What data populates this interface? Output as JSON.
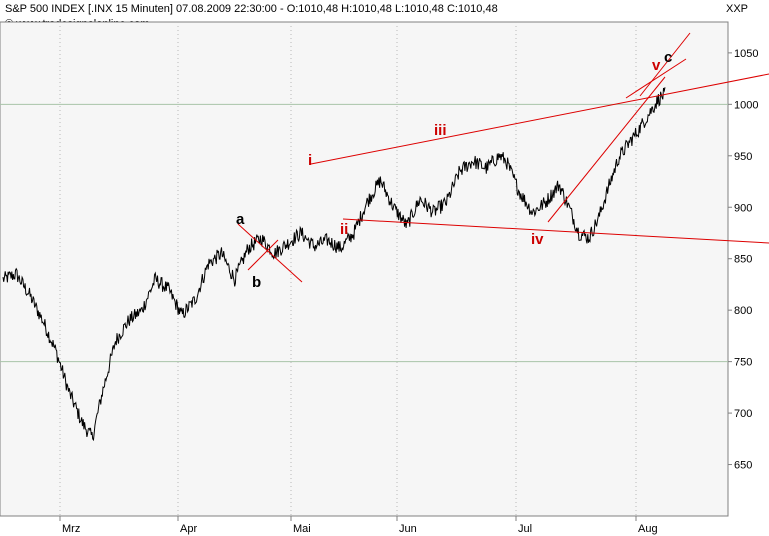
{
  "header": {
    "title": "S&P 500 INDEX [.INX  15 Minuten] 07.08.2009 22:30:00 - O:1010,48 H:1010,48 L:1010,48 C:1010,48",
    "copyright": "© www.tradesignalonline.com",
    "symbol": "XXP"
  },
  "chart_data": {
    "type": "line",
    "title": "S&P 500 INDEX [.INX 15 Minuten]",
    "ylim": [
      600,
      1080
    ],
    "y_ticks": [
      650,
      700,
      750,
      800,
      850,
      900,
      950,
      1000,
      1050
    ],
    "x_ticks": [
      "Mrz",
      "Apr",
      "Mai",
      "Jun",
      "Jul",
      "Aug"
    ],
    "grid": "horizontal at 750 and 1000; vertical at month starts",
    "series_anchor_points": [
      {
        "t": 0.0,
        "v": 830
      },
      {
        "t": 0.02,
        "v": 835
      },
      {
        "t": 0.04,
        "v": 815
      },
      {
        "t": 0.06,
        "v": 790
      },
      {
        "t": 0.08,
        "v": 760
      },
      {
        "t": 0.1,
        "v": 720
      },
      {
        "t": 0.12,
        "v": 690
      },
      {
        "t": 0.135,
        "v": 676
      },
      {
        "t": 0.15,
        "v": 720
      },
      {
        "t": 0.17,
        "v": 770
      },
      {
        "t": 0.19,
        "v": 790
      },
      {
        "t": 0.21,
        "v": 800
      },
      {
        "t": 0.23,
        "v": 830
      },
      {
        "t": 0.25,
        "v": 820
      },
      {
        "t": 0.27,
        "v": 795
      },
      {
        "t": 0.29,
        "v": 810
      },
      {
        "t": 0.31,
        "v": 845
      },
      {
        "t": 0.33,
        "v": 855
      },
      {
        "t": 0.35,
        "v": 830
      },
      {
        "t": 0.37,
        "v": 860
      },
      {
        "t": 0.39,
        "v": 870
      },
      {
        "t": 0.41,
        "v": 855
      },
      {
        "t": 0.43,
        "v": 865
      },
      {
        "t": 0.45,
        "v": 875
      },
      {
        "t": 0.47,
        "v": 862
      },
      {
        "t": 0.49,
        "v": 868
      },
      {
        "t": 0.51,
        "v": 860
      },
      {
        "t": 0.53,
        "v": 875
      },
      {
        "t": 0.55,
        "v": 905
      },
      {
        "t": 0.57,
        "v": 926
      },
      {
        "t": 0.59,
        "v": 900
      },
      {
        "t": 0.61,
        "v": 882
      },
      {
        "t": 0.63,
        "v": 908
      },
      {
        "t": 0.65,
        "v": 895
      },
      {
        "t": 0.67,
        "v": 905
      },
      {
        "t": 0.69,
        "v": 935
      },
      {
        "t": 0.71,
        "v": 945
      },
      {
        "t": 0.73,
        "v": 938
      },
      {
        "t": 0.75,
        "v": 950
      },
      {
        "t": 0.76,
        "v": 945
      },
      {
        "t": 0.78,
        "v": 915
      },
      {
        "t": 0.8,
        "v": 895
      },
      {
        "t": 0.82,
        "v": 905
      },
      {
        "t": 0.84,
        "v": 922
      },
      {
        "t": 0.855,
        "v": 900
      },
      {
        "t": 0.87,
        "v": 875
      },
      {
        "t": 0.885,
        "v": 870
      },
      {
        "t": 0.9,
        "v": 890
      },
      {
        "t": 0.915,
        "v": 920
      },
      {
        "t": 0.93,
        "v": 948
      },
      {
        "t": 0.945,
        "v": 962
      },
      {
        "t": 0.96,
        "v": 975
      },
      {
        "t": 0.975,
        "v": 990
      },
      {
        "t": 0.99,
        "v": 1005
      },
      {
        "t": 1.0,
        "v": 1010
      }
    ],
    "annotations": [
      {
        "label": "a",
        "color": "#000000"
      },
      {
        "label": "b",
        "color": "#000000"
      },
      {
        "label": "i",
        "color": "#cc0000"
      },
      {
        "label": "ii",
        "color": "#cc0000"
      },
      {
        "label": "iii",
        "color": "#cc0000"
      },
      {
        "label": "iv",
        "color": "#cc0000"
      },
      {
        "label": "v",
        "color": "#cc0000"
      },
      {
        "label": "c",
        "color": "#000000"
      }
    ]
  },
  "colors": {
    "plot_bg": "#f6f6f6",
    "price_line": "#000000",
    "trend_line": "#dd0000",
    "grid": "#a8c4a8"
  }
}
